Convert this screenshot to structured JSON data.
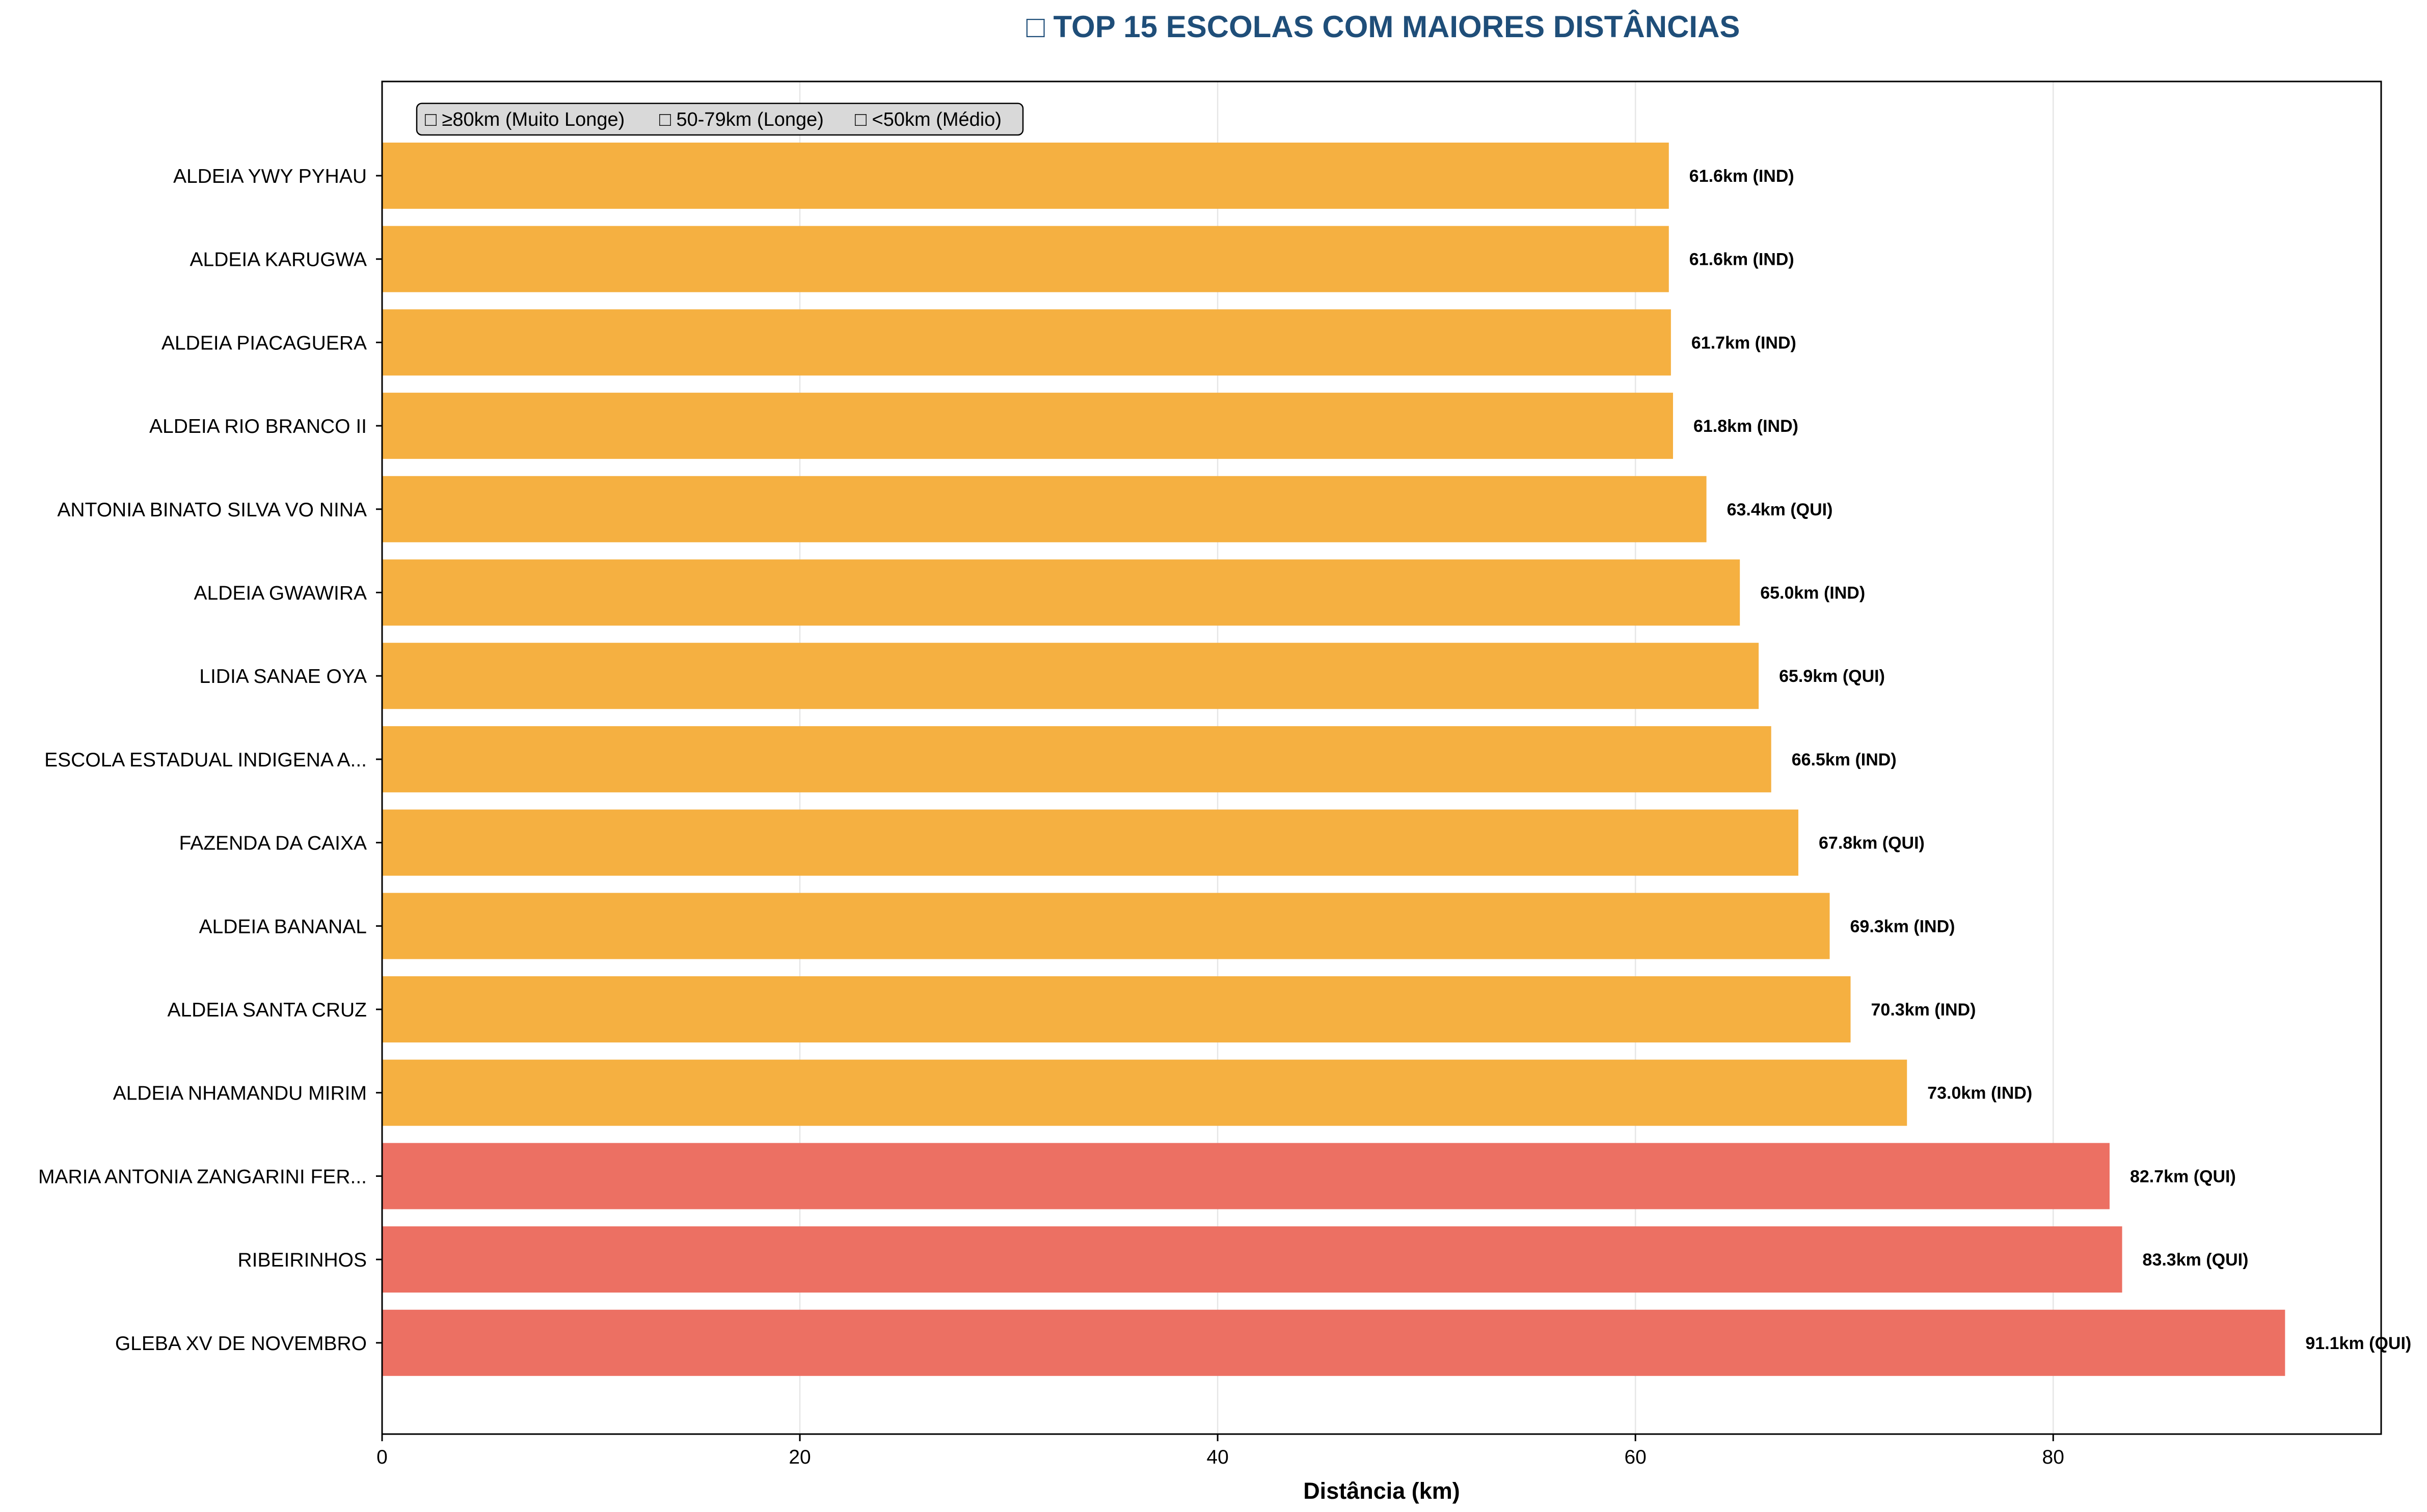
{
  "chart_data": {
    "type": "bar",
    "orientation": "horizontal",
    "title": "□ TOP 15 ESCOLAS COM MAIORES DISTÂNCIAS",
    "xlabel": "Distância (km)",
    "ylabel": "",
    "xlim": [
      0,
      95.7
    ],
    "xticks": [
      0,
      20,
      40,
      60,
      80
    ],
    "grid": "x",
    "legend_placement": "top-left",
    "legend": [
      {
        "label": "□ ≥80km (Muito Longe)"
      },
      {
        "label": "□ 50-79km (Longe)"
      },
      {
        "label": "□ <50km (Médio)"
      }
    ],
    "colors": {
      "very_far": "#ec7063",
      "far": "#f5b041",
      "title": "#1f4e79"
    },
    "categories": [
      "ALDEIA YWY PYHAU",
      "ALDEIA KARUGWA",
      "ALDEIA PIACAGUERA",
      "ALDEIA RIO BRANCO II",
      "ANTONIA BINATO SILVA VO NINA",
      "ALDEIA GWAWIRA",
      "LIDIA SANAE OYA",
      "ESCOLA ESTADUAL INDIGENA  A...",
      "FAZENDA DA CAIXA",
      "ALDEIA BANANAL",
      "ALDEIA SANTA CRUZ",
      "ALDEIA NHAMANDU MIRIM",
      "MARIA ANTONIA ZANGARINI FER...",
      "RIBEIRINHOS",
      "GLEBA XV DE NOVEMBRO"
    ],
    "values": [
      61.6,
      61.6,
      61.7,
      61.8,
      63.4,
      65.0,
      65.9,
      66.5,
      67.8,
      69.3,
      70.3,
      73.0,
      82.7,
      83.3,
      91.1
    ],
    "value_labels": [
      "61.6km (IND)",
      "61.6km (IND)",
      "61.7km (IND)",
      "61.8km (IND)",
      "63.4km (QUI)",
      "65.0km (IND)",
      "65.9km (QUI)",
      "66.5km (IND)",
      "67.8km (QUI)",
      "69.3km (IND)",
      "70.3km (IND)",
      "73.0km (IND)",
      "82.7km (QUI)",
      "83.3km (QUI)",
      "91.1km (QUI)"
    ],
    "categories_color": [
      "far",
      "far",
      "far",
      "far",
      "far",
      "far",
      "far",
      "far",
      "far",
      "far",
      "far",
      "far",
      "very_far",
      "very_far",
      "very_far"
    ]
  }
}
